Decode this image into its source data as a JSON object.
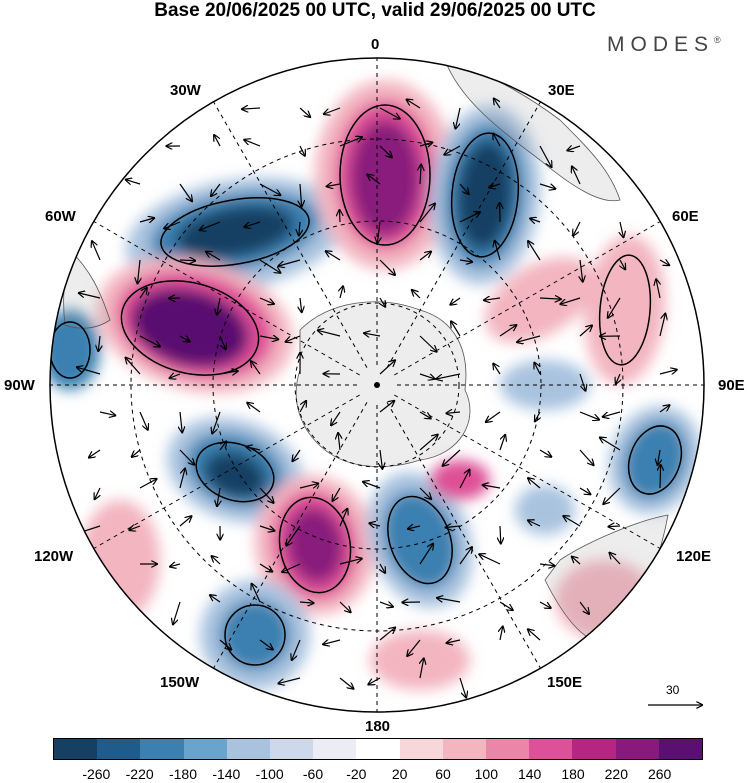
{
  "title": "Base 20/06/2025 00 UTC, valid 29/06/2025 00 UTC",
  "brand": "MODES",
  "brand_mark": "®",
  "longitude_labels": {
    "top": "0",
    "top_left": "30W",
    "top_right": "30E",
    "upper_left": "60W",
    "upper_right": "60E",
    "left": "90W",
    "right": "90E",
    "lower_left": "120W",
    "lower_right": "120E",
    "bottom_left": "150W",
    "bottom_right": "150E",
    "bottom": "180"
  },
  "vector_scale_label": "30",
  "colorbar": {
    "colors": [
      "#153f63",
      "#1f5c8c",
      "#3b80b0",
      "#6aa3cc",
      "#a9c3df",
      "#cdd8ea",
      "#ececf5",
      "#ffffff",
      "#f7d7da",
      "#f3b5c0",
      "#ec86a9",
      "#de5097",
      "#b62582",
      "#891a7b",
      "#5a1070"
    ],
    "ticks": [
      "-260",
      "-220",
      "-180",
      "-140",
      "-100",
      "-60",
      "-20",
      "20",
      "60",
      "100",
      "140",
      "180",
      "220",
      "260"
    ]
  }
}
